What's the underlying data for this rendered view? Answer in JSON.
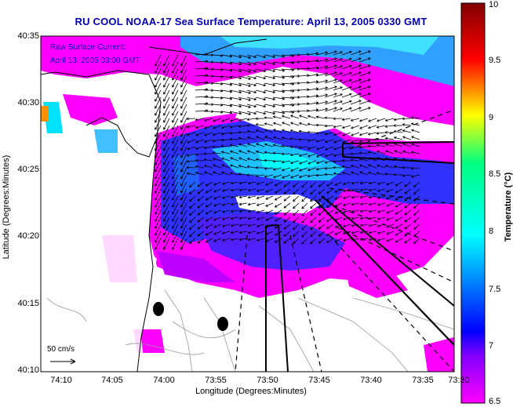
{
  "title": "RU COOL  NOAA-17  Sea Surface Temperature:  April 13, 2005 0330 GMT",
  "current_label_line1": "Raw Surface Current:",
  "current_label_line2": "April 13, 2005 03:00 GMT",
  "scale_label": "50 cm/s",
  "axes": {
    "xlabel": "Longitude (Degrees:Minutes)",
    "ylabel": "Latitude (Degrees:Minutes)",
    "xticks": [
      "74:10",
      "74:05",
      "74:00",
      "73:55",
      "73:50",
      "73:45",
      "73:40",
      "73:35",
      "73:30"
    ],
    "yticks": [
      "40:35",
      "40:30",
      "40:25",
      "40:20",
      "40:15",
      "40:10"
    ]
  },
  "colorbar": {
    "label": "Temperature (°C)",
    "ticks": [
      "10",
      "9.5",
      "9",
      "8.5",
      "8",
      "7.5",
      "7",
      "6.5"
    ],
    "range": [
      6.5,
      10
    ],
    "colors": [
      "#ff00ff",
      "#0000ff",
      "#00ffff",
      "#00ff00",
      "#ffff00",
      "#ff0000",
      "#800000"
    ]
  },
  "colors": {
    "land": "#ffffff",
    "cold": "#ff00ff",
    "cool": "#3030ff",
    "warm": "#00ffff",
    "title": "#0000b0"
  }
}
